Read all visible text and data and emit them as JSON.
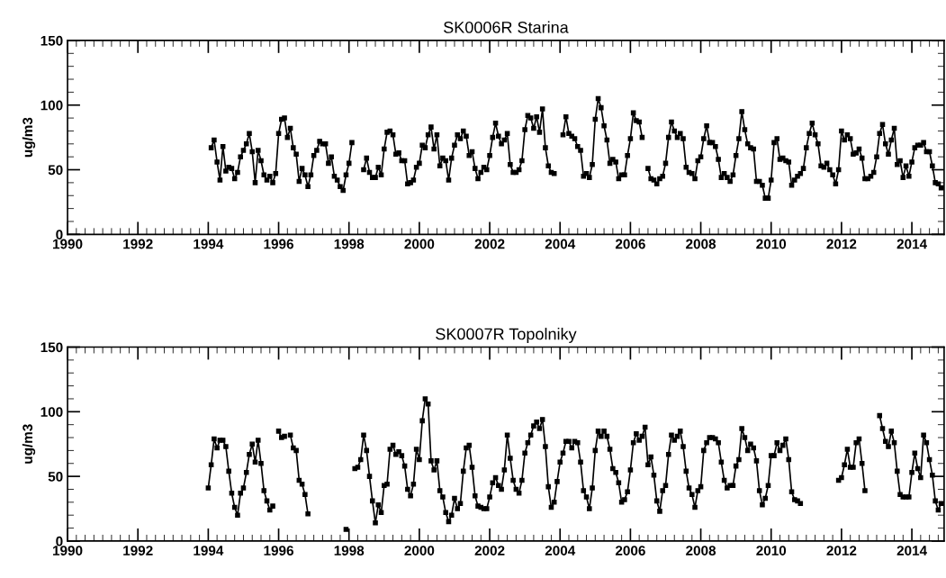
{
  "chart_data": [
    {
      "type": "line",
      "title": "SK0006R Starina",
      "ylabel": "ug/m3",
      "xlim": [
        "1990-01",
        "2014-12"
      ],
      "xticks": [
        "1990",
        "1992",
        "1994",
        "1996",
        "1998",
        "2000",
        "2002",
        "2004",
        "2006",
        "2008",
        "2010",
        "2012",
        "2014"
      ],
      "ylim": [
        0,
        150
      ],
      "yticks": [
        0,
        50,
        100,
        150
      ],
      "grid": false,
      "legend": false,
      "marker": "square",
      "line_style": "solid",
      "x": [
        "1994-02",
        "1994-03",
        "1994-04",
        "1994-05",
        "1994-06",
        "1994-07",
        "1994-08",
        "1994-09",
        "1994-10",
        "1994-11",
        "1994-12",
        "1995-01",
        "1995-02",
        "1995-03",
        "1995-04",
        "1995-05",
        "1995-06",
        "1995-07",
        "1995-08",
        "1995-09",
        "1995-10",
        "1995-11",
        "1995-12",
        "1996-01",
        "1996-02",
        "1996-03",
        "1996-04",
        "1996-05",
        "1996-06",
        "1996-07",
        "1996-08",
        "1996-09",
        "1996-10",
        "1996-11",
        "1996-12",
        "1997-01",
        "1997-02",
        "1997-03",
        "1997-04",
        "1997-05",
        "1997-06",
        "1997-07",
        "1997-08",
        "1997-09",
        "1997-10",
        "1997-11",
        "1997-12",
        "1998-01",
        "1998-02",
        "1998-03",
        "1998-04",
        "1998-05",
        "1998-06",
        "1998-07",
        "1998-08",
        "1998-09",
        "1998-10",
        "1998-11",
        "1998-12",
        "1999-01",
        "1999-02",
        "1999-03",
        "1999-04",
        "1999-05",
        "1999-06",
        "1999-07",
        "1999-08",
        "1999-09",
        "1999-10",
        "1999-11",
        "1999-12",
        "2000-01",
        "2000-02",
        "2000-03",
        "2000-04",
        "2000-05",
        "2000-06",
        "2000-07",
        "2000-08",
        "2000-09",
        "2000-10",
        "2000-11",
        "2000-12",
        "2001-01",
        "2001-02",
        "2001-03",
        "2001-04",
        "2001-05",
        "2001-06",
        "2001-07",
        "2001-08",
        "2001-09",
        "2001-10",
        "2001-11",
        "2001-12",
        "2002-01",
        "2002-02",
        "2002-03",
        "2002-04",
        "2002-05",
        "2002-06",
        "2002-07",
        "2002-08",
        "2002-09",
        "2002-10",
        "2002-11",
        "2002-12",
        "2003-01",
        "2003-02",
        "2003-03",
        "2003-04",
        "2003-05",
        "2003-06",
        "2003-07",
        "2003-08",
        "2003-09",
        "2003-10",
        "2003-11",
        "2003-12",
        "2004-01",
        "2004-02",
        "2004-03",
        "2004-04",
        "2004-05",
        "2004-06",
        "2004-07",
        "2004-08",
        "2004-09",
        "2004-10",
        "2004-11",
        "2004-12",
        "2005-01",
        "2005-02",
        "2005-03",
        "2005-04",
        "2005-05",
        "2005-06",
        "2005-07",
        "2005-08",
        "2005-09",
        "2005-10",
        "2005-11",
        "2005-12",
        "2006-01",
        "2006-02",
        "2006-03",
        "2006-04",
        "2006-05",
        "2006-06",
        "2006-07",
        "2006-08",
        "2006-09",
        "2006-10",
        "2006-11",
        "2006-12",
        "2007-01",
        "2007-02",
        "2007-03",
        "2007-04",
        "2007-05",
        "2007-06",
        "2007-07",
        "2007-08",
        "2007-09",
        "2007-10",
        "2007-11",
        "2007-12",
        "2008-01",
        "2008-02",
        "2008-03",
        "2008-04",
        "2008-05",
        "2008-06",
        "2008-07",
        "2008-08",
        "2008-09",
        "2008-10",
        "2008-11",
        "2008-12",
        "2009-01",
        "2009-02",
        "2009-03",
        "2009-04",
        "2009-05",
        "2009-06",
        "2009-07",
        "2009-08",
        "2009-09",
        "2009-10",
        "2009-11",
        "2009-12",
        "2010-01",
        "2010-02",
        "2010-03",
        "2010-04",
        "2010-05",
        "2010-06",
        "2010-07",
        "2010-08",
        "2010-09",
        "2010-10",
        "2010-11",
        "2010-12",
        "2011-01",
        "2011-02",
        "2011-03",
        "2011-04",
        "2011-05",
        "2011-06",
        "2011-07",
        "2011-08",
        "2011-09",
        "2011-10",
        "2011-11",
        "2011-12",
        "2012-01",
        "2012-02",
        "2012-03",
        "2012-04",
        "2012-05",
        "2012-06",
        "2012-07",
        "2012-08",
        "2012-09",
        "2012-10",
        "2012-11",
        "2012-12",
        "2013-01",
        "2013-02",
        "2013-03",
        "2013-04",
        "2013-05",
        "2013-06",
        "2013-07",
        "2013-08",
        "2013-09",
        "2013-10",
        "2013-11",
        "2013-12",
        "2014-01",
        "2014-02",
        "2014-03",
        "2014-04",
        "2014-05",
        "2014-06",
        "2014-07",
        "2014-08",
        "2014-09",
        "2014-10",
        "2014-11"
      ],
      "series": [
        {
          "color": "#000000",
          "values": [
            67,
            73,
            56,
            42,
            68,
            49,
            52,
            51,
            43,
            48,
            60,
            65,
            70,
            78,
            64,
            40,
            65,
            57,
            46,
            42,
            45,
            40,
            47,
            78,
            89,
            90,
            75,
            82,
            67,
            62,
            41,
            51,
            46,
            37,
            46,
            61,
            65,
            72,
            70,
            70,
            55,
            60,
            45,
            42,
            37,
            34,
            46,
            55,
            71,
            null,
            null,
            null,
            50,
            59,
            48,
            44,
            44,
            52,
            46,
            66,
            79,
            80,
            77,
            62,
            63,
            57,
            57,
            39,
            40,
            42,
            52,
            55,
            69,
            67,
            77,
            83,
            66,
            77,
            53,
            59,
            57,
            42,
            59,
            69,
            77,
            74,
            80,
            76,
            61,
            64,
            51,
            43,
            48,
            52,
            50,
            61,
            75,
            86,
            76,
            70,
            73,
            78,
            54,
            48,
            48,
            50,
            57,
            81,
            92,
            90,
            82,
            91,
            79,
            97,
            67,
            53,
            48,
            47,
            null,
            null,
            77,
            91,
            78,
            76,
            74,
            68,
            65,
            45,
            47,
            44,
            54,
            89,
            105,
            98,
            84,
            73,
            55,
            58,
            56,
            43,
            46,
            46,
            61,
            74,
            94,
            88,
            87,
            75,
            null,
            51,
            43,
            42,
            39,
            43,
            45,
            55,
            75,
            87,
            80,
            75,
            78,
            74,
            52,
            48,
            47,
            43,
            57,
            60,
            74,
            84,
            71,
            71,
            68,
            58,
            44,
            47,
            44,
            41,
            46,
            61,
            74,
            95,
            81,
            70,
            67,
            66,
            41,
            41,
            38,
            28,
            28,
            42,
            71,
            74,
            58,
            59,
            57,
            56,
            38,
            42,
            45,
            47,
            51,
            67,
            78,
            86,
            77,
            70,
            53,
            52,
            55,
            50,
            46,
            39,
            50,
            80,
            73,
            77,
            74,
            62,
            63,
            66,
            59,
            43,
            43,
            45,
            48,
            60,
            78,
            85,
            70,
            62,
            73,
            82,
            54,
            57,
            44,
            53,
            45,
            56,
            67,
            69,
            69,
            71,
            64,
            64,
            53,
            40,
            39,
            36
          ]
        }
      ]
    },
    {
      "type": "line",
      "title": "SK0007R Topolniky",
      "ylabel": "ug/m3",
      "xlim": [
        "1990-01",
        "2014-12"
      ],
      "xticks": [
        "1990",
        "1992",
        "1994",
        "1996",
        "1998",
        "2000",
        "2002",
        "2004",
        "2006",
        "2008",
        "2010",
        "2012",
        "2014"
      ],
      "ylim": [
        0,
        150
      ],
      "yticks": [
        0,
        50,
        100,
        150
      ],
      "grid": false,
      "legend": false,
      "marker": "square",
      "line_style": "solid",
      "x": [
        "1994-01",
        "1994-02",
        "1994-03",
        "1994-04",
        "1994-05",
        "1994-06",
        "1994-07",
        "1994-08",
        "1994-09",
        "1994-10",
        "1994-11",
        "1994-12",
        "1995-01",
        "1995-02",
        "1995-03",
        "1995-04",
        "1995-05",
        "1995-06",
        "1995-07",
        "1995-08",
        "1995-09",
        "1995-10",
        "1995-11",
        "1995-12",
        "1996-01",
        "1996-02",
        "1996-03",
        "1996-04",
        "1996-05",
        "1996-06",
        "1996-07",
        "1996-08",
        "1996-09",
        "1996-10",
        "1996-11",
        "1996-12",
        "1997-01",
        "1997-02",
        "1997-03",
        "1997-04",
        "1997-05",
        "1997-06",
        "1997-07",
        "1997-08",
        "1997-09",
        "1997-10",
        "1997-11",
        "1997-12",
        "1998-01",
        "1998-02",
        "1998-03",
        "1998-04",
        "1998-05",
        "1998-06",
        "1998-07",
        "1998-08",
        "1998-09",
        "1998-10",
        "1998-11",
        "1998-12",
        "1999-01",
        "1999-02",
        "1999-03",
        "1999-04",
        "1999-05",
        "1999-06",
        "1999-07",
        "1999-08",
        "1999-09",
        "1999-10",
        "1999-11",
        "1999-12",
        "2000-01",
        "2000-02",
        "2000-03",
        "2000-04",
        "2000-05",
        "2000-06",
        "2000-07",
        "2000-08",
        "2000-09",
        "2000-10",
        "2000-11",
        "2000-12",
        "2001-01",
        "2001-02",
        "2001-03",
        "2001-04",
        "2001-05",
        "2001-06",
        "2001-07",
        "2001-08",
        "2001-09",
        "2001-10",
        "2001-11",
        "2001-12",
        "2002-01",
        "2002-02",
        "2002-03",
        "2002-04",
        "2002-05",
        "2002-06",
        "2002-07",
        "2002-08",
        "2002-09",
        "2002-10",
        "2002-11",
        "2002-12",
        "2003-01",
        "2003-02",
        "2003-03",
        "2003-04",
        "2003-05",
        "2003-06",
        "2003-07",
        "2003-08",
        "2003-09",
        "2003-10",
        "2003-11",
        "2003-12",
        "2004-01",
        "2004-02",
        "2004-03",
        "2004-04",
        "2004-05",
        "2004-06",
        "2004-07",
        "2004-08",
        "2004-09",
        "2004-10",
        "2004-11",
        "2004-12",
        "2005-01",
        "2005-02",
        "2005-03",
        "2005-04",
        "2005-05",
        "2005-06",
        "2005-07",
        "2005-08",
        "2005-09",
        "2005-10",
        "2005-11",
        "2005-12",
        "2006-01",
        "2006-02",
        "2006-03",
        "2006-04",
        "2006-05",
        "2006-06",
        "2006-07",
        "2006-08",
        "2006-09",
        "2006-10",
        "2006-11",
        "2006-12",
        "2007-01",
        "2007-02",
        "2007-03",
        "2007-04",
        "2007-05",
        "2007-06",
        "2007-07",
        "2007-08",
        "2007-09",
        "2007-10",
        "2007-11",
        "2007-12",
        "2008-01",
        "2008-02",
        "2008-03",
        "2008-04",
        "2008-05",
        "2008-06",
        "2008-07",
        "2008-08",
        "2008-09",
        "2008-10",
        "2008-11",
        "2008-12",
        "2009-01",
        "2009-02",
        "2009-03",
        "2009-04",
        "2009-05",
        "2009-06",
        "2009-07",
        "2009-08",
        "2009-09",
        "2009-10",
        "2009-11",
        "2009-12",
        "2010-01",
        "2010-02",
        "2010-03",
        "2010-04",
        "2010-05",
        "2010-06",
        "2010-07",
        "2010-08",
        "2010-09",
        "2010-10",
        "2010-11",
        "2010-12",
        "2011-01",
        "2011-02",
        "2011-03",
        "2011-04",
        "2011-05",
        "2011-06",
        "2011-07",
        "2011-08",
        "2011-09",
        "2011-10",
        "2011-11",
        "2011-12",
        "2012-01",
        "2012-02",
        "2012-03",
        "2012-04",
        "2012-05",
        "2012-06",
        "2012-07",
        "2012-08",
        "2012-09",
        "2012-10",
        "2012-11",
        "2012-12",
        "2013-01",
        "2013-02",
        "2013-03",
        "2013-04",
        "2013-05",
        "2013-06",
        "2013-07",
        "2013-08",
        "2013-09",
        "2013-10",
        "2013-11",
        "2013-12",
        "2014-01",
        "2014-02",
        "2014-03",
        "2014-04",
        "2014-05",
        "2014-06",
        "2014-07",
        "2014-08",
        "2014-09",
        "2014-10",
        "2014-11"
      ],
      "series": [
        {
          "color": "#000000",
          "values": [
            41,
            59,
            79,
            72,
            78,
            78,
            73,
            54,
            37,
            26,
            20,
            37,
            41,
            53,
            67,
            75,
            61,
            78,
            60,
            39,
            31,
            24,
            27,
            null,
            85,
            80,
            81,
            null,
            82,
            72,
            70,
            47,
            44,
            36,
            21,
            null,
            null,
            null,
            null,
            null,
            null,
            null,
            null,
            null,
            null,
            null,
            null,
            9,
            null,
            null,
            56,
            57,
            63,
            82,
            70,
            50,
            31,
            14,
            28,
            22,
            43,
            44,
            71,
            74,
            67,
            69,
            66,
            58,
            40,
            35,
            44,
            71,
            63,
            93,
            110,
            106,
            62,
            55,
            62,
            39,
            34,
            22,
            15,
            20,
            33,
            25,
            29,
            54,
            72,
            74,
            57,
            35,
            27,
            26,
            25,
            25,
            34,
            45,
            49,
            43,
            40,
            55,
            82,
            64,
            47,
            40,
            37,
            47,
            68,
            76,
            82,
            89,
            92,
            87,
            94,
            73,
            42,
            26,
            30,
            46,
            61,
            68,
            77,
            77,
            72,
            77,
            76,
            61,
            39,
            34,
            25,
            41,
            70,
            85,
            81,
            85,
            81,
            71,
            56,
            53,
            45,
            30,
            32,
            38,
            55,
            76,
            83,
            78,
            81,
            88,
            59,
            65,
            51,
            31,
            23,
            39,
            43,
            67,
            82,
            78,
            81,
            85,
            73,
            54,
            41,
            36,
            26,
            39,
            42,
            70,
            76,
            80,
            80,
            79,
            76,
            61,
            47,
            41,
            43,
            43,
            58,
            63,
            87,
            80,
            70,
            75,
            72,
            62,
            39,
            28,
            33,
            43,
            66,
            66,
            76,
            70,
            74,
            79,
            63,
            38,
            32,
            31,
            29,
            null,
            null,
            null,
            null,
            null,
            null,
            null,
            null,
            null,
            null,
            null,
            null,
            47,
            49,
            59,
            71,
            57,
            57,
            76,
            79,
            60,
            39,
            null,
            null,
            null,
            null,
            97,
            87,
            77,
            73,
            85,
            76,
            54,
            36,
            34,
            34,
            34,
            53,
            68,
            56,
            49,
            82,
            76,
            63,
            51,
            31,
            24,
            29
          ]
        }
      ]
    }
  ]
}
